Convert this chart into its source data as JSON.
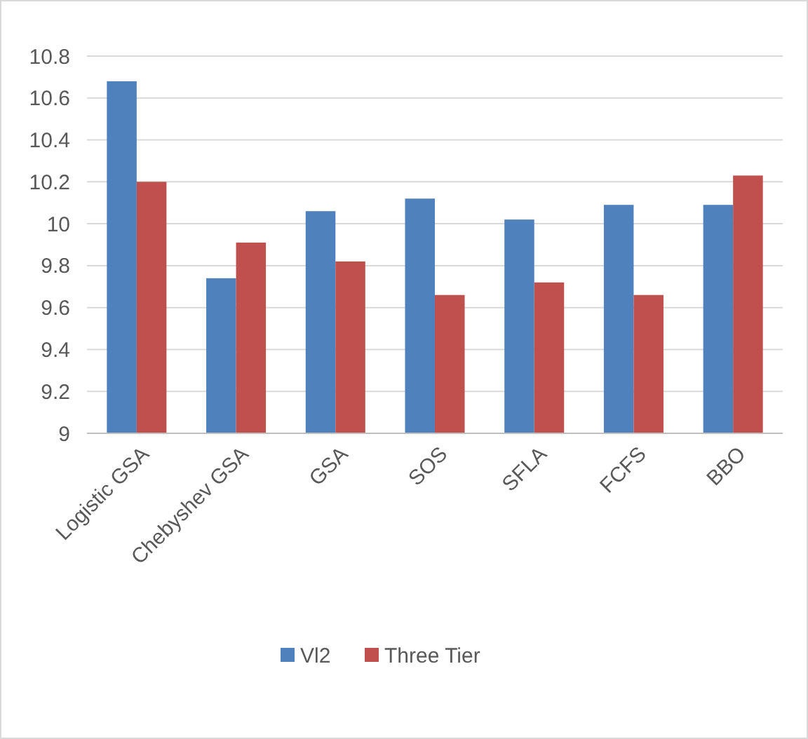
{
  "chart_data": {
    "type": "bar",
    "categories": [
      "Logistic GSA",
      "Chebyshev GSA",
      "GSA",
      "SOS",
      "SFLA",
      "FCFS",
      "BBO"
    ],
    "series": [
      {
        "name": "Vl2",
        "color": "#4f81bd",
        "values": [
          10.68,
          9.74,
          10.06,
          10.12,
          10.02,
          10.09,
          10.09
        ]
      },
      {
        "name": "Three Tier",
        "color": "#c0504d",
        "values": [
          10.2,
          9.91,
          9.82,
          9.66,
          9.72,
          9.66,
          10.23
        ]
      }
    ],
    "ylim": [
      9,
      10.8
    ],
    "yticks": [
      9,
      9.2,
      9.4,
      9.6,
      9.8,
      10,
      10.2,
      10.4,
      10.6,
      10.8
    ],
    "grid": "y",
    "legend": "bottom"
  }
}
